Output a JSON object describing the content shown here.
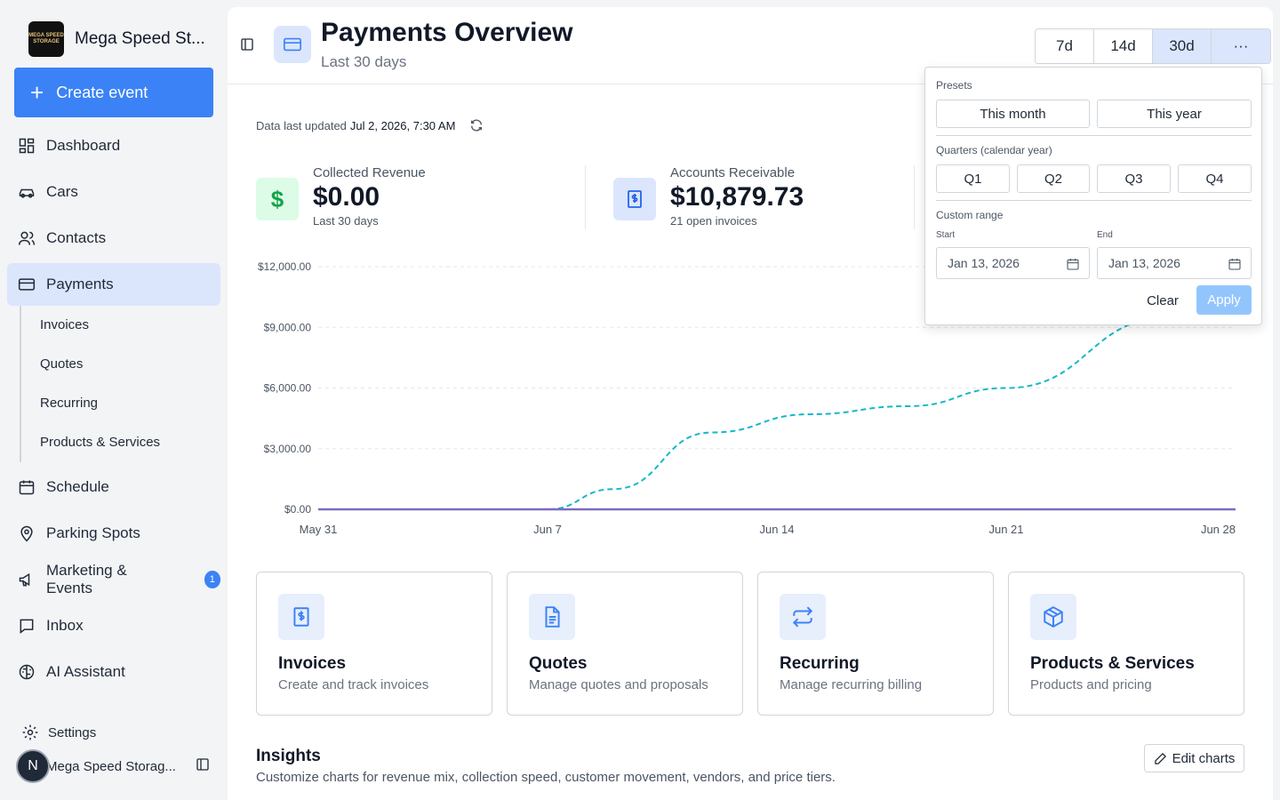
{
  "brand": {
    "name": "Mega Speed St...",
    "logo_text": "MEGA SPEED STORAGE"
  },
  "sidebar": {
    "create_label": "Create event",
    "items": [
      {
        "label": "Dashboard",
        "icon": "dashboard-icon"
      },
      {
        "label": "Cars",
        "icon": "car-icon"
      },
      {
        "label": "Contacts",
        "icon": "contacts-icon"
      },
      {
        "label": "Payments",
        "icon": "card-icon"
      },
      {
        "label": "Schedule",
        "icon": "calendar-icon"
      },
      {
        "label": "Parking Spots",
        "icon": "map-pin-icon"
      },
      {
        "label": "Marketing & Events",
        "icon": "megaphone-icon",
        "badge": "1"
      },
      {
        "label": "Inbox",
        "icon": "inbox-icon"
      },
      {
        "label": "AI Assistant",
        "icon": "brain-icon"
      }
    ],
    "sub_items": [
      "Invoices",
      "Quotes",
      "Recurring",
      "Products & Services"
    ],
    "settings_label": "Settings",
    "user": {
      "initial": "N",
      "name": "Mega Speed Storag..."
    }
  },
  "header": {
    "title": "Payments Overview",
    "subtitle": "Last 30 days",
    "ranges": [
      "7d",
      "14d",
      "30d",
      "···"
    ],
    "active_range": "30d"
  },
  "updated": {
    "prefix": "Data last updated",
    "value": "Jul 2, 2026, 7:30 AM"
  },
  "kpis": [
    {
      "label": "Collected Revenue",
      "value": "$0.00",
      "note": "Last 30 days",
      "color": "#16a34a"
    },
    {
      "label": "Accounts Receivable",
      "value": "$10,879.73",
      "note": "21 open invoices",
      "color": "#2563eb"
    }
  ],
  "chart_data": {
    "type": "line",
    "x": [
      "May 31",
      "Jun 7",
      "Jun 14",
      "Jun 21",
      "Jun 28"
    ],
    "y_ticks": [
      "$12,000.00",
      "$9,000.00",
      "$6,000.00",
      "$3,000.00",
      "$0.00"
    ],
    "ylim": [
      0,
      12000
    ],
    "series": [
      {
        "values_by_day": [
          [
            0,
            0
          ],
          [
            7,
            0
          ],
          [
            9,
            1000
          ],
          [
            12,
            3800
          ],
          [
            15,
            4700
          ],
          [
            18,
            5100
          ],
          [
            21,
            6000
          ],
          [
            26,
            9500
          ],
          [
            28,
            11200
          ]
        ],
        "style": "dashed",
        "color": "#14b8c8"
      },
      {
        "values_by_day": [
          [
            0,
            0
          ],
          [
            28,
            0
          ]
        ],
        "style": "solid",
        "color": "#7c6bbf"
      }
    ]
  },
  "cards": [
    {
      "title": "Invoices",
      "desc": "Create and track invoices",
      "icon": "invoice-icon"
    },
    {
      "title": "Quotes",
      "desc": "Manage quotes and proposals",
      "icon": "document-icon"
    },
    {
      "title": "Recurring",
      "desc": "Manage recurring billing",
      "icon": "repeat-icon"
    },
    {
      "title": "Products & Services",
      "desc": "Products and pricing",
      "icon": "box-icon"
    }
  ],
  "insights": {
    "title": "Insights",
    "desc": "Customize charts for revenue mix, collection speed, customer movement, vendors, and price tiers.",
    "edit_label": "Edit charts"
  },
  "popover": {
    "presets_label": "Presets",
    "presets": [
      "This month",
      "This year"
    ],
    "quarters_label": "Quarters (calendar year)",
    "quarters": [
      "Q1",
      "Q2",
      "Q3",
      "Q4"
    ],
    "custom_label": "Custom range",
    "start_label": "Start",
    "end_label": "End",
    "start_value": "Jan 13, 2026",
    "end_value": "Jan 13, 2026",
    "clear_label": "Clear",
    "apply_label": "Apply"
  }
}
